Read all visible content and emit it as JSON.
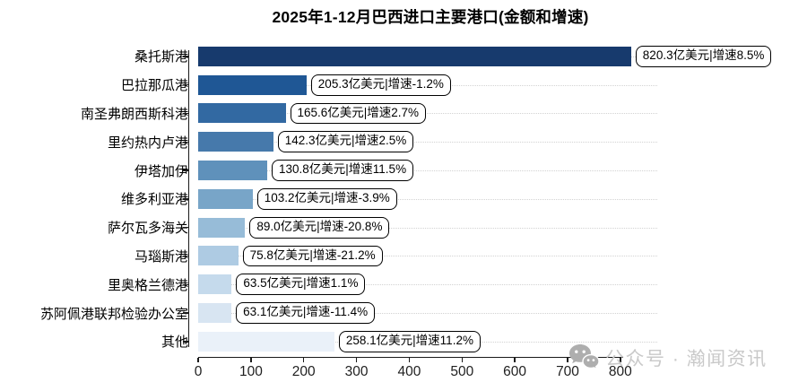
{
  "watermark": {
    "text": "公众号 · 瀚闻资讯",
    "icon": "wechat-icon",
    "color": "#aeaeae"
  },
  "chart_data": {
    "type": "bar",
    "orientation": "horizontal",
    "title": "2025年1-12月巴西进口主要港口(金额和增速)",
    "xlabel": "",
    "ylabel": "",
    "categories": [
      "桑托斯港",
      "巴拉那瓜港",
      "南圣弗朗西斯科港",
      "里约热内卢港",
      "伊塔加伊",
      "维多利亚港",
      "萨尔瓦多海关",
      "马瑙斯港",
      "里奥格兰德港",
      "苏阿佩港联邦检验办公室",
      "其他"
    ],
    "values": [
      820.3,
      205.3,
      165.6,
      142.3,
      130.8,
      103.2,
      89.0,
      75.8,
      63.5,
      63.1,
      258.1
    ],
    "growth_pct": [
      8.5,
      -1.2,
      2.7,
      2.5,
      11.5,
      -3.9,
      -20.8,
      -21.2,
      1.1,
      -11.4,
      11.2
    ],
    "annotations": [
      "820.3亿美元|增速8.5%",
      "205.3亿美元|增速-1.2%",
      "165.6亿美元|增速2.7%",
      "142.3亿美元|增速2.5%",
      "130.8亿美元|增速11.5%",
      "103.2亿美元|增速-3.9%",
      "89.0亿美元|增速-20.8%",
      "75.8亿美元|增速-21.2%",
      "63.5亿美元|增速1.1%",
      "63.1亿美元|增速-11.4%",
      "258.1亿美元|增速11.2%"
    ],
    "value_unit": "亿美元",
    "xlim": [
      0,
      870
    ],
    "x_ticks": [
      0,
      100,
      200,
      300,
      400,
      500,
      600,
      700,
      800
    ],
    "bar_colors": [
      "#173a6d",
      "#1f5795",
      "#3269a2",
      "#4679ab",
      "#5f91bb",
      "#78a5c8",
      "#97bcd8",
      "#aecbe3",
      "#c5daec",
      "#d8e5f2",
      "#eaf1f9"
    ],
    "grid": "horizontal-dotted",
    "legend": "none"
  }
}
